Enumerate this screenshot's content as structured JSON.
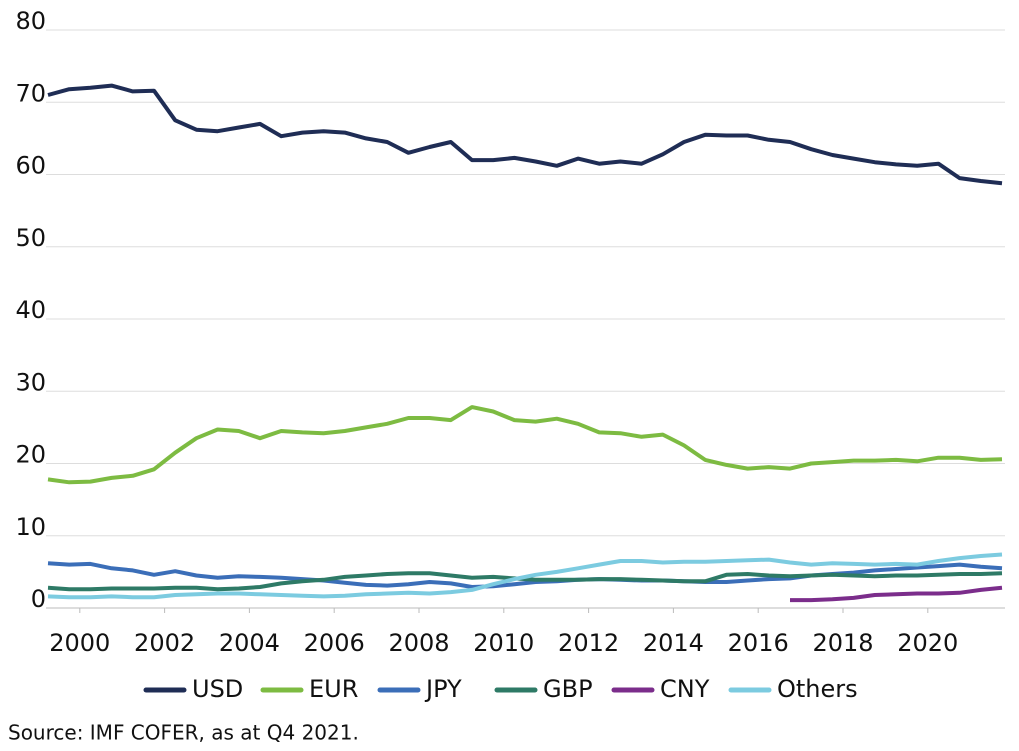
{
  "chart_data": {
    "type": "line",
    "source": "Source: IMF COFER, as at Q4 2021.",
    "x": [
      1999.25,
      1999.75,
      2000.25,
      2000.75,
      2001.25,
      2001.75,
      2002.25,
      2002.75,
      2003.25,
      2003.75,
      2004.25,
      2004.75,
      2005.25,
      2005.75,
      2006.25,
      2006.75,
      2007.25,
      2007.75,
      2008.25,
      2008.75,
      2009.25,
      2009.75,
      2010.25,
      2010.75,
      2011.25,
      2011.75,
      2012.25,
      2012.75,
      2013.25,
      2013.75,
      2014.25,
      2014.75,
      2015.25,
      2015.75,
      2016.25,
      2016.75,
      2017.25,
      2017.75,
      2018.25,
      2018.75,
      2019.25,
      2019.75,
      2020.25,
      2020.75,
      2021.25,
      2021.75
    ],
    "xlim": [
      1999.25,
      2021.75
    ],
    "xticks": [
      2000,
      2002,
      2004,
      2006,
      2008,
      2010,
      2012,
      2014,
      2016,
      2018,
      2020
    ],
    "ylim": [
      0,
      80
    ],
    "yticks": [
      0,
      10,
      20,
      30,
      40,
      50,
      60,
      70,
      80
    ],
    "grid": true,
    "legend": "bottom",
    "series": [
      {
        "name": "USD",
        "color": "#1f2d55",
        "values": [
          71,
          71.8,
          72,
          72.3,
          71.5,
          71.6,
          67.5,
          66.2,
          66,
          66.5,
          67,
          65.3,
          65.8,
          66,
          65.8,
          65,
          64.5,
          63,
          63.8,
          64.5,
          62,
          62,
          62.3,
          61.8,
          61.2,
          62.2,
          61.5,
          61.8,
          61.5,
          62.8,
          64.5,
          65.5,
          65.4,
          65.4,
          64.8,
          64.5,
          63.5,
          62.7,
          62.2,
          61.7,
          61.4,
          61.2,
          61.5,
          59.5,
          59.1,
          58.8
        ]
      },
      {
        "name": "EUR",
        "color": "#7dbb42",
        "values": [
          17.8,
          17.4,
          17.5,
          18,
          18.3,
          19.2,
          21.5,
          23.5,
          24.7,
          24.5,
          23.5,
          24.5,
          24.3,
          24.2,
          24.5,
          25,
          25.5,
          26.3,
          26.3,
          26,
          27.8,
          27.2,
          26,
          25.8,
          26.2,
          25.5,
          24.3,
          24.2,
          23.7,
          24,
          22.5,
          20.5,
          19.8,
          19.3,
          19.5,
          19.3,
          20,
          20.2,
          20.4,
          20.4,
          20.5,
          20.3,
          20.8,
          20.8,
          20.5,
          20.6
        ]
      },
      {
        "name": "JPY",
        "color": "#3b6eb8",
        "values": [
          6.2,
          6.0,
          6.1,
          5.5,
          5.2,
          4.6,
          5.1,
          4.5,
          4.2,
          4.4,
          4.3,
          4.2,
          4.0,
          3.8,
          3.5,
          3.2,
          3.1,
          3.3,
          3.6,
          3.4,
          2.9,
          3.0,
          3.3,
          3.6,
          3.7,
          3.9,
          4.0,
          3.9,
          3.8,
          3.8,
          3.7,
          3.6,
          3.6,
          3.8,
          4.0,
          4.1,
          4.5,
          4.7,
          4.9,
          5.2,
          5.4,
          5.6,
          5.8,
          6.0,
          5.7,
          5.5
        ]
      },
      {
        "name": "GBP",
        "color": "#2e7a66",
        "values": [
          2.8,
          2.6,
          2.6,
          2.7,
          2.7,
          2.7,
          2.8,
          2.8,
          2.6,
          2.7,
          2.9,
          3.4,
          3.7,
          3.9,
          4.3,
          4.5,
          4.7,
          4.8,
          4.8,
          4.5,
          4.2,
          4.3,
          4.1,
          3.9,
          3.9,
          3.9,
          4.0,
          4.0,
          3.9,
          3.8,
          3.7,
          3.7,
          4.6,
          4.7,
          4.5,
          4.4,
          4.5,
          4.6,
          4.5,
          4.4,
          4.5,
          4.5,
          4.6,
          4.7,
          4.7,
          4.8
        ]
      },
      {
        "name": "CNY",
        "color": "#7b2d8b",
        "values": [
          null,
          null,
          null,
          null,
          null,
          null,
          null,
          null,
          null,
          null,
          null,
          null,
          null,
          null,
          null,
          null,
          null,
          null,
          null,
          null,
          null,
          null,
          null,
          null,
          null,
          null,
          null,
          null,
          null,
          null,
          null,
          null,
          null,
          null,
          null,
          1.1,
          1.1,
          1.2,
          1.4,
          1.8,
          1.9,
          2.0,
          2.0,
          2.1,
          2.5,
          2.8
        ]
      },
      {
        "name": "Others",
        "color": "#7ccbe0",
        "values": [
          1.6,
          1.5,
          1.5,
          1.6,
          1.5,
          1.5,
          1.8,
          1.9,
          2.0,
          2.0,
          1.9,
          1.8,
          1.7,
          1.6,
          1.7,
          1.9,
          2.0,
          2.1,
          2.0,
          2.2,
          2.5,
          3.3,
          4.0,
          4.6,
          5.0,
          5.5,
          6.0,
          6.5,
          6.5,
          6.3,
          6.4,
          6.4,
          6.5,
          6.6,
          6.7,
          6.3,
          6.0,
          6.2,
          6.1,
          6.0,
          6.1,
          6.0,
          6.5,
          6.9,
          7.2,
          7.4
        ]
      }
    ]
  }
}
